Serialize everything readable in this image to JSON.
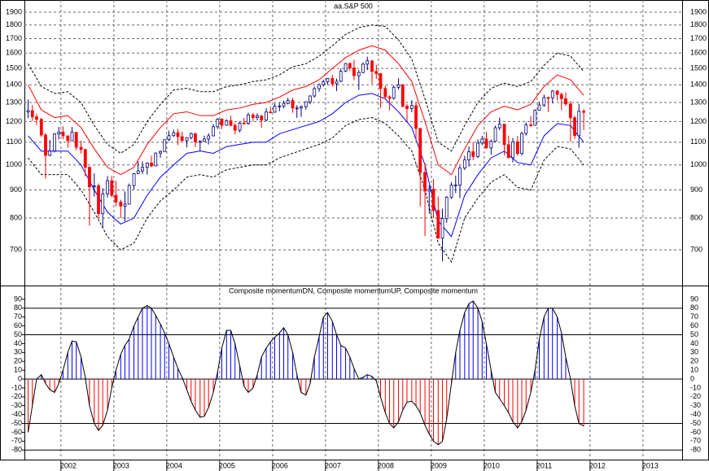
{
  "chart_data": [
    {
      "type": "candlestick",
      "title": "aa.S&P 500",
      "log_scale": true,
      "grid": true,
      "up_color": "#ffffff",
      "down_color": "#ff0000",
      "wick_color": "#000080",
      "xlim": [
        2001.31,
        2013.74
      ],
      "xticks": [
        2002,
        2003,
        2004,
        2005,
        2006,
        2007,
        2008,
        2009,
        2010,
        2011,
        2012,
        2013
      ],
      "ylim": [
        604.5,
        1986
      ],
      "yticks": [
        700,
        800,
        900,
        1000,
        1100,
        1200,
        1300,
        1400,
        1500,
        1600,
        1700,
        1800,
        1900
      ],
      "x": [
        2001.38,
        2001.46,
        2001.54,
        2001.63,
        2001.71,
        2001.79,
        2001.88,
        2001.96,
        2002.04,
        2002.13,
        2002.21,
        2002.29,
        2002.38,
        2002.46,
        2002.54,
        2002.63,
        2002.71,
        2002.79,
        2002.88,
        2002.96,
        2003.04,
        2003.13,
        2003.21,
        2003.29,
        2003.38,
        2003.46,
        2003.54,
        2003.63,
        2003.71,
        2003.79,
        2003.88,
        2003.96,
        2004.04,
        2004.13,
        2004.21,
        2004.29,
        2004.38,
        2004.46,
        2004.54,
        2004.63,
        2004.71,
        2004.79,
        2004.88,
        2004.96,
        2005.04,
        2005.13,
        2005.21,
        2005.29,
        2005.38,
        2005.46,
        2005.54,
        2005.63,
        2005.71,
        2005.79,
        2005.88,
        2005.96,
        2006.04,
        2006.13,
        2006.21,
        2006.29,
        2006.38,
        2006.46,
        2006.54,
        2006.63,
        2006.71,
        2006.79,
        2006.88,
        2006.96,
        2007.04,
        2007.13,
        2007.21,
        2007.29,
        2007.38,
        2007.46,
        2007.54,
        2007.63,
        2007.71,
        2007.79,
        2007.88,
        2007.96,
        2008.04,
        2008.13,
        2008.21,
        2008.29,
        2008.38,
        2008.46,
        2008.54,
        2008.63,
        2008.71,
        2008.79,
        2008.88,
        2008.96,
        2009.04,
        2009.13,
        2009.21,
        2009.29,
        2009.38,
        2009.46,
        2009.54,
        2009.63,
        2009.71,
        2009.79,
        2009.88,
        2009.96,
        2010.04,
        2010.13,
        2010.21,
        2010.29,
        2010.38,
        2010.46,
        2010.54,
        2010.63,
        2010.71,
        2010.79,
        2010.88,
        2010.96,
        2011.04,
        2011.13,
        2011.21,
        2011.29,
        2011.38,
        2011.46,
        2011.54,
        2011.63,
        2011.71,
        2011.79,
        2011.88
      ],
      "open": [
        1249,
        1256,
        1224,
        1211,
        1134,
        1041,
        1060,
        1139,
        1148,
        1130,
        1107,
        1147,
        1077,
        1067,
        990,
        912,
        916,
        815,
        886,
        936,
        880,
        856,
        841,
        848,
        917,
        964,
        975,
        990,
        1008,
        996,
        1051,
        1058,
        1112,
        1131,
        1145,
        1126,
        1107,
        1121,
        1141,
        1102,
        1104,
        1115,
        1130,
        1174,
        1212,
        1181,
        1204,
        1181,
        1157,
        1192,
        1191,
        1234,
        1220,
        1229,
        1207,
        1249,
        1248,
        1280,
        1281,
        1295,
        1311,
        1270,
        1270,
        1277,
        1304,
        1336,
        1378,
        1401,
        1418,
        1438,
        1407,
        1421,
        1482,
        1531,
        1503,
        1455,
        1474,
        1527,
        1549,
        1481,
        1468,
        1379,
        1331,
        1323,
        1386,
        1400,
        1280,
        1267,
        1283,
        1166,
        969,
        896,
        903,
        826,
        735,
        798,
        873,
        919,
        919,
        987,
        1021,
        1057,
        1036,
        1096,
        1115,
        1074,
        1104,
        1169,
        1187,
        1089,
        1031,
        1102,
        1049,
        1141,
        1183,
        1181,
        1258,
        1286,
        1327,
        1326,
        1364,
        1345,
        1321,
        1292,
        1219,
        1131,
        1253
      ],
      "high": [
        1316,
        1286,
        1240,
        1218,
        1143,
        1110,
        1143,
        1173,
        1176,
        1130,
        1173,
        1147,
        1107,
        1070,
        994,
        965,
        925,
        907,
        954,
        954,
        935,
        864,
        895,
        925,
        966,
        1015,
        1015,
        1011,
        1040,
        1054,
        1063,
        1112,
        1155,
        1159,
        1163,
        1150,
        1123,
        1146,
        1141,
        1109,
        1131,
        1142,
        1188,
        1217,
        1217,
        1212,
        1229,
        1192,
        1199,
        1219,
        1245,
        1245,
        1243,
        1233,
        1270,
        1276,
        1295,
        1297,
        1310,
        1326,
        1326,
        1285,
        1284,
        1306,
        1340,
        1389,
        1407,
        1431,
        1441,
        1462,
        1438,
        1499,
        1535,
        1540,
        1556,
        1490,
        1539,
        1576,
        1552,
        1523,
        1471,
        1396,
        1340,
        1397,
        1440,
        1405,
        1292,
        1313,
        1304,
        1167,
        1007,
        918,
        943,
        876,
        832,
        877,
        930,
        956,
        996,
        1039,
        1080,
        1101,
        1113,
        1130,
        1150,
        1113,
        1180,
        1220,
        1188,
        1131,
        1120,
        1129,
        1150,
        1196,
        1227,
        1263,
        1303,
        1344,
        1333,
        1370,
        1371,
        1356,
        1356,
        1308,
        1230,
        1293,
        1264
      ],
      "low": [
        1217,
        1203,
        1183,
        1124,
        944,
        1037,
        1054,
        1113,
        1114,
        1075,
        1106,
        1063,
        1049,
        953,
        775,
        876,
        800,
        768,
        872,
        872,
        840,
        800,
        789,
        847,
        902,
        963,
        962,
        960,
        990,
        995,
        1031,
        1056,
        1105,
        1125,
        1087,
        1107,
        1076,
        1113,
        1078,
        1060,
        1101,
        1090,
        1127,
        1163,
        1163,
        1180,
        1176,
        1137,
        1146,
        1188,
        1183,
        1201,
        1206,
        1168,
        1201,
        1246,
        1245,
        1253,
        1268,
        1290,
        1245,
        1219,
        1224,
        1261,
        1291,
        1327,
        1360,
        1390,
        1403,
        1390,
        1364,
        1416,
        1476,
        1484,
        1427,
        1370,
        1471,
        1489,
        1406,
        1435,
        1270,
        1316,
        1257,
        1315,
        1373,
        1272,
        1200,
        1248,
        1107,
        840,
        742,
        815,
        800,
        735,
        667,
        784,
        867,
        888,
        870,
        979,
        993,
        1020,
        1029,
        1086,
        1071,
        1045,
        1101,
        1157,
        1040,
        1028,
        1011,
        1040,
        1040,
        1131,
        1173,
        1181,
        1256,
        1276,
        1249,
        1295,
        1311,
        1258,
        1282,
        1102,
        1115,
        1075,
        1158
      ],
      "close": [
        1256,
        1224,
        1211,
        1134,
        1041,
        1060,
        1139,
        1148,
        1130,
        1107,
        1147,
        1077,
        1067,
        990,
        912,
        916,
        815,
        886,
        936,
        880,
        856,
        841,
        848,
        917,
        964,
        975,
        990,
        1008,
        996,
        1051,
        1058,
        1112,
        1131,
        1145,
        1126,
        1107,
        1121,
        1141,
        1102,
        1104,
        1115,
        1130,
        1174,
        1212,
        1181,
        1204,
        1181,
        1157,
        1192,
        1191,
        1234,
        1220,
        1229,
        1207,
        1249,
        1248,
        1280,
        1281,
        1295,
        1311,
        1270,
        1270,
        1277,
        1304,
        1336,
        1378,
        1401,
        1418,
        1438,
        1407,
        1421,
        1482,
        1531,
        1503,
        1455,
        1474,
        1527,
        1549,
        1481,
        1468,
        1379,
        1331,
        1323,
        1386,
        1400,
        1280,
        1267,
        1283,
        1166,
        969,
        896,
        903,
        826,
        735,
        798,
        873,
        919,
        919,
        987,
        1021,
        1057,
        1036,
        1096,
        1115,
        1074,
        1104,
        1169,
        1187,
        1089,
        1031,
        1102,
        1049,
        1141,
        1183,
        1181,
        1258,
        1286,
        1327,
        1326,
        1364,
        1345,
        1321,
        1292,
        1219,
        1131,
        1253,
        1247
      ],
      "band_x": [
        2001.38,
        2001.63,
        2001.88,
        2002.13,
        2002.38,
        2002.63,
        2002.88,
        2003.13,
        2003.38,
        2003.63,
        2003.88,
        2004.13,
        2004.38,
        2004.63,
        2004.88,
        2005.13,
        2005.38,
        2005.63,
        2005.88,
        2006.13,
        2006.38,
        2006.63,
        2006.88,
        2007.13,
        2007.38,
        2007.63,
        2007.88,
        2008.13,
        2008.38,
        2008.63,
        2008.88,
        2009.13,
        2009.38,
        2009.63,
        2009.88,
        2010.13,
        2010.38,
        2010.63,
        2010.88,
        2011.13,
        2011.38,
        2011.63,
        2011.88
      ],
      "bands": [
        {
          "color": "#000000",
          "dash": true,
          "values": [
            1530,
            1390,
            1350,
            1360,
            1300,
            1180,
            1090,
            1050,
            1090,
            1200,
            1290,
            1370,
            1380,
            1360,
            1360,
            1390,
            1400,
            1420,
            1430,
            1460,
            1510,
            1530,
            1580,
            1650,
            1730,
            1780,
            1800,
            1790,
            1690,
            1560,
            1320,
            1100,
            1060,
            1180,
            1300,
            1380,
            1410,
            1390,
            1420,
            1520,
            1600,
            1580,
            1480
          ]
        },
        {
          "color": "#ff0000",
          "dash": false,
          "values": [
            1400,
            1260,
            1220,
            1230,
            1170,
            1070,
            990,
            960,
            990,
            1090,
            1170,
            1240,
            1250,
            1230,
            1230,
            1260,
            1270,
            1290,
            1300,
            1330,
            1370,
            1390,
            1430,
            1500,
            1570,
            1620,
            1650,
            1620,
            1530,
            1420,
            1200,
            1000,
            960,
            1070,
            1180,
            1250,
            1280,
            1260,
            1290,
            1390,
            1460,
            1430,
            1340
          ]
        },
        {
          "color": "#0000ff",
          "dash": false,
          "values": [
            1130,
            1060,
            1060,
            1060,
            1000,
            900,
            820,
            780,
            800,
            880,
            950,
            1000,
            1050,
            1060,
            1050,
            1080,
            1090,
            1100,
            1100,
            1140,
            1160,
            1180,
            1200,
            1240,
            1300,
            1340,
            1350,
            1320,
            1250,
            1170,
            1000,
            790,
            740,
            880,
            960,
            1030,
            1060,
            1010,
            1000,
            1130,
            1190,
            1180,
            1100
          ]
        },
        {
          "color": "#000000",
          "dash": true,
          "values": [
            1030,
            960,
            960,
            960,
            900,
            820,
            740,
            700,
            720,
            800,
            860,
            900,
            950,
            960,
            950,
            980,
            990,
            1000,
            1000,
            1030,
            1050,
            1070,
            1090,
            1120,
            1180,
            1210,
            1220,
            1190,
            1130,
            1060,
            900,
            720,
            665,
            800,
            870,
            930,
            960,
            910,
            900,
            1020,
            1080,
            1070,
            1000
          ]
        }
      ]
    },
    {
      "type": "momentum",
      "title": "Composite momentumDN, Composite momentumUP, Composite momentum",
      "up_color": "#0000ff",
      "down_color": "#ff0000",
      "line_color": "#000000",
      "ylim": [
        -90.8,
        104.6
      ],
      "yticks": [
        -80,
        -70,
        -60,
        -50,
        -40,
        -30,
        -20,
        -10,
        0,
        10,
        20,
        30,
        40,
        50,
        60,
        70,
        80,
        90
      ],
      "levels": [
        80,
        50,
        0,
        -50,
        -80
      ],
      "values": [
        -60,
        -30,
        0,
        5,
        -5,
        -12,
        -15,
        -5,
        10,
        30,
        43,
        42,
        25,
        2,
        -30,
        -50,
        -58,
        -52,
        -35,
        -10,
        10,
        28,
        38,
        45,
        60,
        70,
        80,
        83,
        80,
        72,
        62,
        52,
        40,
        25,
        12,
        2,
        -12,
        -25,
        -35,
        -43,
        -42,
        -32,
        -15,
        8,
        35,
        55,
        55,
        40,
        15,
        -8,
        -15,
        -10,
        5,
        25,
        35,
        42,
        47,
        52,
        58,
        50,
        30,
        5,
        -15,
        -18,
        -5,
        25,
        48,
        70,
        75,
        65,
        50,
        38,
        35,
        25,
        12,
        0,
        2,
        5,
        3,
        -2,
        -20,
        -38,
        -50,
        -55,
        -48,
        -35,
        -26,
        -25,
        -30,
        -38,
        -52,
        -62,
        -70,
        -74,
        -70,
        -45,
        -5,
        30,
        55,
        75,
        85,
        88,
        80,
        65,
        40,
        10,
        -15,
        -22,
        -30,
        -38,
        -48,
        -55,
        -48,
        -35,
        -15,
        10,
        45,
        70,
        80,
        80,
        70,
        52,
        25,
        0,
        -30,
        -50,
        -53
      ]
    }
  ]
}
